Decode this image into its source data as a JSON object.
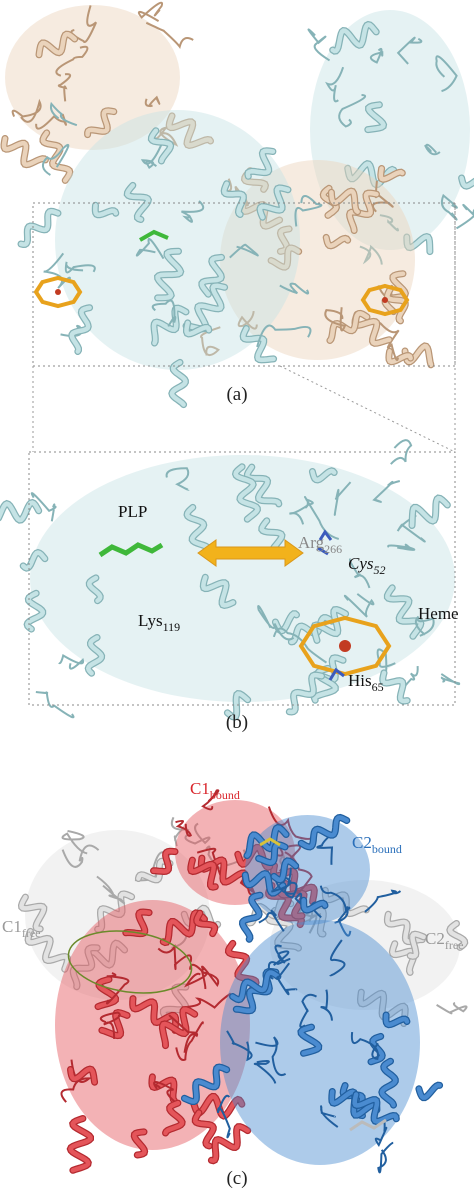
{
  "panels": [
    {
      "label": "(a)"
    },
    {
      "label": "(b)",
      "annotations": [
        {
          "base": "PLP"
        },
        {
          "base": "Arg",
          "sub": "266"
        },
        {
          "base": "Cys",
          "sub": "52"
        },
        {
          "base": "Lys",
          "sub": "119"
        },
        {
          "base": "Heme"
        },
        {
          "base": "His",
          "sub": "65"
        }
      ]
    },
    {
      "label": "(c)",
      "annotations": [
        {
          "base": "C1",
          "sub": "bound"
        },
        {
          "base": "C2",
          "sub": "bound"
        },
        {
          "base": "C1",
          "sub": "free"
        },
        {
          "base": "C2",
          "sub": "free"
        }
      ]
    }
  ]
}
